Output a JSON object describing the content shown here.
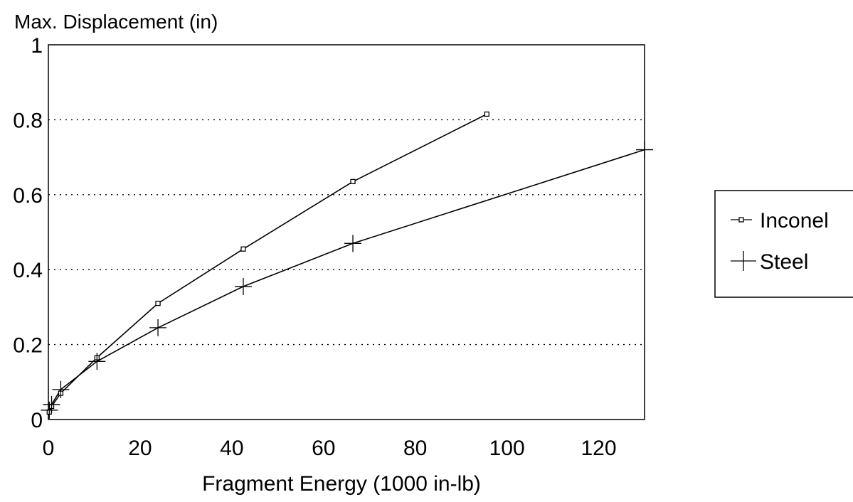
{
  "chart_data": {
    "type": "line",
    "title": "",
    "xlabel": "Fragment Energy (1000 in-lb)",
    "ylabel": "Max. Displacement (in)",
    "xlim": [
      0,
      130
    ],
    "ylim": [
      0,
      1
    ],
    "xticks": [
      "0",
      "20",
      "40",
      "60",
      "80",
      "100",
      "120"
    ],
    "yticks": [
      "0",
      "0.2",
      "0.4",
      "0.6",
      "0.8",
      "1"
    ],
    "grid": "horizontal dotted",
    "legend_position": "right",
    "series": [
      {
        "name": "Inconel",
        "marker": "square",
        "color": "#000000",
        "x": [
          0.2,
          0.7,
          2.7,
          10.6,
          23.9,
          42.5,
          66.4,
          95.6
        ],
        "y": [
          0.02,
          0.035,
          0.07,
          0.165,
          0.31,
          0.455,
          0.635,
          0.815
        ]
      },
      {
        "name": "Steel",
        "marker": "plus",
        "color": "#000000",
        "x": [
          0.2,
          0.7,
          2.7,
          10.6,
          23.9,
          42.5,
          66.4,
          130
        ],
        "y": [
          0.025,
          0.04,
          0.08,
          0.155,
          0.245,
          0.355,
          0.47,
          0.72
        ]
      }
    ]
  }
}
